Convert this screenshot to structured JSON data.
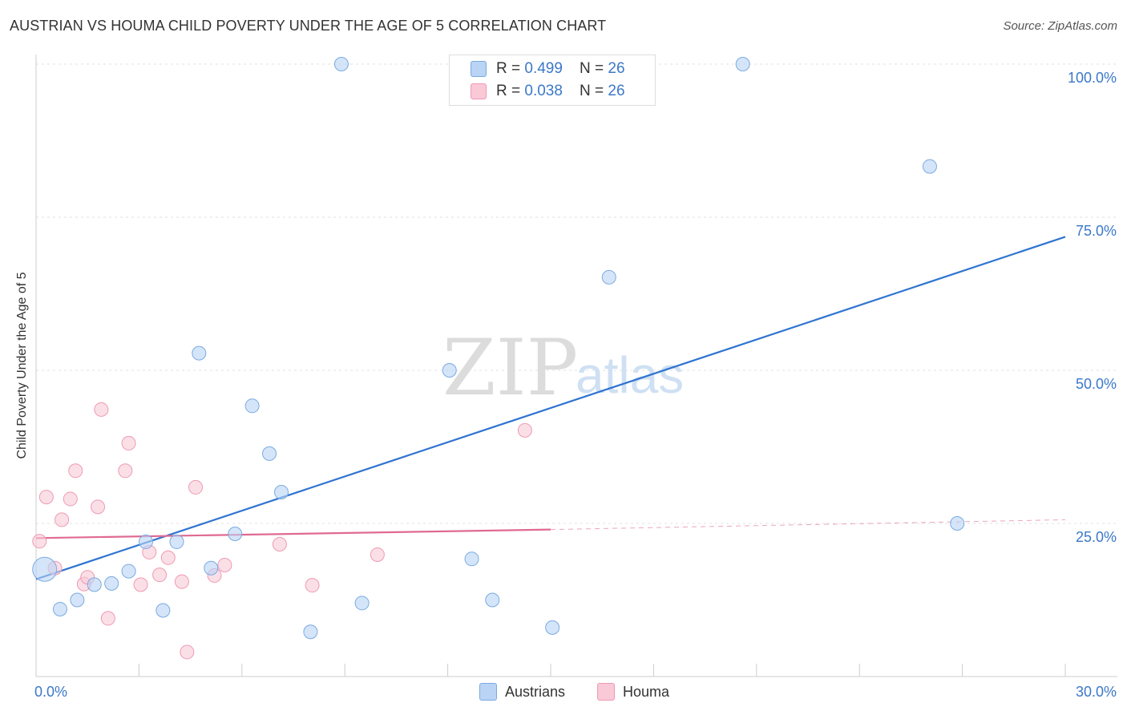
{
  "header": {
    "title": "AUSTRIAN VS HOUMA CHILD POVERTY UNDER THE AGE OF 5 CORRELATION CHART",
    "source": "Source: ZipAtlas.com"
  },
  "watermark": {
    "zip": "ZIP",
    "atlas": "atlas"
  },
  "legend": {
    "austrians": {
      "r_label": "R = ",
      "r_value": "0.499",
      "n_label": "N = ",
      "n_value": "26"
    },
    "houma": {
      "r_label": "R = ",
      "r_value": "0.038",
      "n_label": "N = ",
      "n_value": "26"
    }
  },
  "colors": {
    "austrians_fill": "#b9d4f5",
    "austrians_stroke": "#7aaae0",
    "austrians_line": "#2f74d0",
    "houma_fill": "#f9c9d7",
    "houma_stroke": "#ee9ab4",
    "houma_line": "#e06a92",
    "axis_text": "#3b78c8",
    "grid": "#e0e0e0"
  },
  "chart_data": {
    "type": "scatter",
    "title": "AUSTRIAN VS HOUMA CHILD POVERTY UNDER THE AGE OF 5 CORRELATION CHART",
    "xlabel": "",
    "ylabel": "Child Poverty Under the Age of 5",
    "xlim": [
      0,
      30
    ],
    "ylim": [
      0,
      100
    ],
    "x_tick_labels": [
      "0.0%",
      "30.0%"
    ],
    "y_ticks": [
      25,
      50,
      75,
      100
    ],
    "y_tick_labels": [
      "25.0%",
      "50.0%",
      "75.0%",
      "100.0%"
    ],
    "grid": true,
    "legend_placement": "top-center",
    "series": [
      {
        "name": "Austrians",
        "r": 0.499,
        "n": 26,
        "points": [
          {
            "x": 0.25,
            "y": 17.5,
            "big": true
          },
          {
            "x": 0.7,
            "y": 11.0
          },
          {
            "x": 1.2,
            "y": 12.5
          },
          {
            "x": 1.7,
            "y": 15.0
          },
          {
            "x": 2.2,
            "y": 15.2
          },
          {
            "x": 2.7,
            "y": 17.2
          },
          {
            "x": 3.2,
            "y": 22.0
          },
          {
            "x": 3.7,
            "y": 10.8
          },
          {
            "x": 4.1,
            "y": 22.0
          },
          {
            "x": 4.75,
            "y": 52.8
          },
          {
            "x": 5.1,
            "y": 17.7
          },
          {
            "x": 5.8,
            "y": 23.3
          },
          {
            "x": 6.3,
            "y": 44.2
          },
          {
            "x": 6.8,
            "y": 36.4
          },
          {
            "x": 7.15,
            "y": 30.1
          },
          {
            "x": 8.0,
            "y": 7.3
          },
          {
            "x": 8.9,
            "y": 100.0
          },
          {
            "x": 9.5,
            "y": 12.0
          },
          {
            "x": 12.05,
            "y": 50.0
          },
          {
            "x": 12.7,
            "y": 19.2
          },
          {
            "x": 13.3,
            "y": 12.5
          },
          {
            "x": 15.05,
            "y": 8.0
          },
          {
            "x": 16.7,
            "y": 65.2
          },
          {
            "x": 20.6,
            "y": 100.0
          },
          {
            "x": 26.05,
            "y": 83.3
          },
          {
            "x": 26.85,
            "y": 25.0
          }
        ],
        "trend": {
          "x0": 0,
          "y0": 15.9,
          "x1": 30,
          "y1": 71.8
        }
      },
      {
        "name": "Houma",
        "r": 0.038,
        "n": 26,
        "points": [
          {
            "x": 0.1,
            "y": 22.1
          },
          {
            "x": 0.3,
            "y": 29.3
          },
          {
            "x": 0.55,
            "y": 17.7
          },
          {
            "x": 0.75,
            "y": 25.6
          },
          {
            "x": 1.0,
            "y": 29.0
          },
          {
            "x": 1.15,
            "y": 33.6
          },
          {
            "x": 1.4,
            "y": 15.1
          },
          {
            "x": 1.5,
            "y": 16.2
          },
          {
            "x": 1.8,
            "y": 27.7
          },
          {
            "x": 1.9,
            "y": 43.6
          },
          {
            "x": 2.1,
            "y": 9.5
          },
          {
            "x": 2.6,
            "y": 33.6
          },
          {
            "x": 2.7,
            "y": 38.1
          },
          {
            "x": 3.05,
            "y": 15.0
          },
          {
            "x": 3.3,
            "y": 20.3
          },
          {
            "x": 3.6,
            "y": 16.6
          },
          {
            "x": 3.85,
            "y": 19.4
          },
          {
            "x": 4.25,
            "y": 15.5
          },
          {
            "x": 4.4,
            "y": 4.0
          },
          {
            "x": 4.65,
            "y": 30.9
          },
          {
            "x": 5.2,
            "y": 16.5
          },
          {
            "x": 5.5,
            "y": 18.2
          },
          {
            "x": 7.1,
            "y": 21.6
          },
          {
            "x": 8.05,
            "y": 14.9
          },
          {
            "x": 9.95,
            "y": 19.9
          },
          {
            "x": 14.25,
            "y": 40.2
          }
        ],
        "trend": {
          "x0": 0,
          "y0": 22.6,
          "x1": 15.0,
          "y1": 24.0,
          "dashed_to": 30,
          "dashed_y1": 25.6
        }
      }
    ]
  },
  "bottom_legend": {
    "austrians": "Austrians",
    "houma": "Houma"
  }
}
